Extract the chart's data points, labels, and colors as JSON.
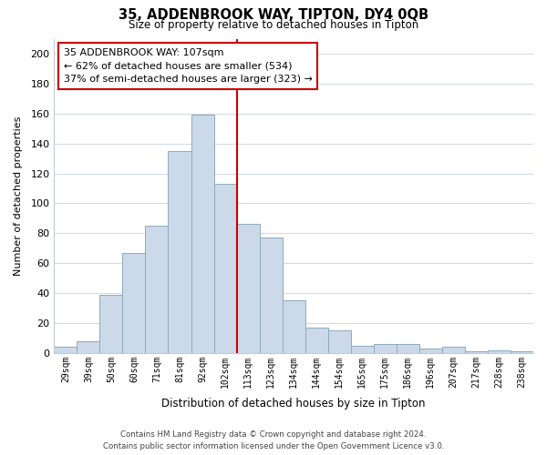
{
  "title": "35, ADDENBROOK WAY, TIPTON, DY4 0QB",
  "subtitle": "Size of property relative to detached houses in Tipton",
  "xlabel": "Distribution of detached houses by size in Tipton",
  "ylabel": "Number of detached properties",
  "categories": [
    "29sqm",
    "39sqm",
    "50sqm",
    "60sqm",
    "71sqm",
    "81sqm",
    "92sqm",
    "102sqm",
    "113sqm",
    "123sqm",
    "134sqm",
    "144sqm",
    "154sqm",
    "165sqm",
    "175sqm",
    "186sqm",
    "196sqm",
    "207sqm",
    "217sqm",
    "228sqm",
    "238sqm"
  ],
  "values": [
    4,
    8,
    39,
    67,
    85,
    135,
    159,
    113,
    86,
    77,
    35,
    17,
    15,
    5,
    6,
    6,
    3,
    4,
    1,
    2,
    1
  ],
  "bar_color": "#ccd9e8",
  "bar_edge_color": "#8caabf",
  "highlight_line_color": "#cc0000",
  "annotation_line1": "35 ADDENBROOK WAY: 107sqm",
  "annotation_line2": "← 62% of detached houses are smaller (534)",
  "annotation_line3": "37% of semi-detached houses are larger (323) →",
  "annotation_box_edge_color": "#cc0000",
  "ylim": [
    0,
    210
  ],
  "yticks": [
    0,
    20,
    40,
    60,
    80,
    100,
    120,
    140,
    160,
    180,
    200
  ],
  "footer_line1": "Contains HM Land Registry data © Crown copyright and database right 2024.",
  "footer_line2": "Contains public sector information licensed under the Open Government Licence v3.0.",
  "bg_color": "#ffffff",
  "grid_color": "#d0dce8"
}
